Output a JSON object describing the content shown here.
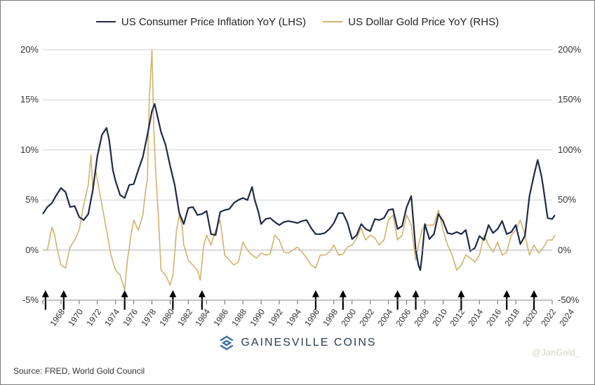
{
  "legend": {
    "series1": {
      "label": "US Consumer Price Inflation YoY (LHS)",
      "color": "#1e2a47"
    },
    "series2": {
      "label": "US Dollar Gold Price YoY (RHS)",
      "color": "#d2b26b"
    }
  },
  "chart": {
    "type": "line",
    "background_color": "#ffffff",
    "border_color": "#7a7a7a",
    "grid_color": "#cfcfcf",
    "axis_text_color": "#333333",
    "tick_font_size": 12,
    "label_font_size": 13,
    "line_width_cpi": 2.2,
    "line_width_gold": 1.6,
    "x": {
      "min": 1968,
      "max": 2024,
      "ticks": [
        1968,
        1970,
        1972,
        1974,
        1976,
        1978,
        1980,
        1982,
        1984,
        1986,
        1988,
        1990,
        1992,
        1994,
        1996,
        1998,
        2000,
        2002,
        2004,
        2006,
        2008,
        2010,
        2012,
        2014,
        2016,
        2018,
        2020,
        2022,
        2024
      ]
    },
    "y_left": {
      "min": -5,
      "max": 20,
      "ticks": [
        -5,
        0,
        5,
        10,
        15,
        20
      ],
      "suffix": "%"
    },
    "y_right": {
      "min": -50,
      "max": 200,
      "ticks": [
        -50,
        0,
        50,
        100,
        150,
        200
      ],
      "suffix": "%"
    },
    "cpi": [
      [
        1968,
        3.6
      ],
      [
        1968.5,
        4.3
      ],
      [
        1969,
        4.7
      ],
      [
        1969.5,
        5.5
      ],
      [
        1970,
        6.2
      ],
      [
        1970.5,
        5.8
      ],
      [
        1971,
        4.3
      ],
      [
        1971.5,
        4.4
      ],
      [
        1972,
        3.3
      ],
      [
        1972.5,
        3.0
      ],
      [
        1973,
        3.6
      ],
      [
        1973.5,
        6.0
      ],
      [
        1974,
        9.4
      ],
      [
        1974.5,
        11.5
      ],
      [
        1975,
        12.2
      ],
      [
        1975.3,
        11.0
      ],
      [
        1975.7,
        8.0
      ],
      [
        1976,
        6.9
      ],
      [
        1976.5,
        5.5
      ],
      [
        1977,
        5.2
      ],
      [
        1977.5,
        6.5
      ],
      [
        1978,
        6.6
      ],
      [
        1978.5,
        8.0
      ],
      [
        1979,
        9.3
      ],
      [
        1979.5,
        11.5
      ],
      [
        1980,
        13.9
      ],
      [
        1980.3,
        14.6
      ],
      [
        1980.7,
        13.0
      ],
      [
        1981,
        11.8
      ],
      [
        1981.5,
        10.5
      ],
      [
        1982,
        8.4
      ],
      [
        1982.5,
        6.5
      ],
      [
        1983,
        3.7
      ],
      [
        1983.5,
        2.6
      ],
      [
        1984,
        4.2
      ],
      [
        1984.5,
        4.3
      ],
      [
        1985,
        3.5
      ],
      [
        1985.5,
        3.6
      ],
      [
        1986,
        3.9
      ],
      [
        1986.5,
        1.6
      ],
      [
        1987,
        1.5
      ],
      [
        1987.5,
        3.8
      ],
      [
        1988,
        4.0
      ],
      [
        1988.5,
        4.1
      ],
      [
        1989,
        4.7
      ],
      [
        1989.5,
        5.0
      ],
      [
        1990,
        5.2
      ],
      [
        1990.5,
        5.0
      ],
      [
        1991,
        6.3
      ],
      [
        1991.3,
        5.0
      ],
      [
        1991.7,
        3.8
      ],
      [
        1992,
        2.6
      ],
      [
        1992.5,
        3.1
      ],
      [
        1993,
        3.2
      ],
      [
        1993.5,
        2.8
      ],
      [
        1994,
        2.5
      ],
      [
        1994.5,
        2.8
      ],
      [
        1995,
        2.9
      ],
      [
        1995.5,
        2.8
      ],
      [
        1996,
        2.7
      ],
      [
        1996.5,
        2.9
      ],
      [
        1997,
        3.0
      ],
      [
        1997.5,
        2.2
      ],
      [
        1998,
        1.6
      ],
      [
        1998.5,
        1.6
      ],
      [
        1999,
        1.7
      ],
      [
        1999.5,
        2.1
      ],
      [
        2000,
        2.7
      ],
      [
        2000.5,
        3.7
      ],
      [
        2001,
        3.7
      ],
      [
        2001.5,
        2.7
      ],
      [
        2002,
        1.1
      ],
      [
        2002.5,
        1.5
      ],
      [
        2003,
        2.6
      ],
      [
        2003.5,
        2.1
      ],
      [
        2004,
        1.9
      ],
      [
        2004.5,
        3.1
      ],
      [
        2005,
        3.0
      ],
      [
        2005.5,
        3.2
      ],
      [
        2006,
        4.0
      ],
      [
        2006.5,
        4.1
      ],
      [
        2007,
        2.1
      ],
      [
        2007.5,
        2.4
      ],
      [
        2008,
        4.3
      ],
      [
        2008.5,
        5.4
      ],
      [
        2009,
        0.0
      ],
      [
        2009.3,
        -1.5
      ],
      [
        2009.5,
        -2.0
      ],
      [
        2009.7,
        -0.5
      ],
      [
        2010,
        2.6
      ],
      [
        2010.5,
        1.1
      ],
      [
        2011,
        1.6
      ],
      [
        2011.5,
        3.6
      ],
      [
        2012,
        2.9
      ],
      [
        2012.5,
        1.7
      ],
      [
        2013,
        1.6
      ],
      [
        2013.5,
        1.8
      ],
      [
        2014,
        1.6
      ],
      [
        2014.5,
        2.0
      ],
      [
        2015,
        -0.1
      ],
      [
        2015.5,
        0.2
      ],
      [
        2016,
        1.4
      ],
      [
        2016.5,
        1.0
      ],
      [
        2017,
        2.5
      ],
      [
        2017.5,
        1.7
      ],
      [
        2018,
        2.1
      ],
      [
        2018.5,
        2.9
      ],
      [
        2019,
        1.6
      ],
      [
        2019.5,
        1.8
      ],
      [
        2020,
        2.5
      ],
      [
        2020.5,
        0.6
      ],
      [
        2021,
        1.4
      ],
      [
        2021.5,
        5.4
      ],
      [
        2022,
        7.5
      ],
      [
        2022.4,
        9.0
      ],
      [
        2022.8,
        7.5
      ],
      [
        2023,
        6.4
      ],
      [
        2023.5,
        3.2
      ],
      [
        2024,
        3.1
      ],
      [
        2024.3,
        3.5
      ]
    ],
    "gold": [
      [
        1968,
        0
      ],
      [
        1968.5,
        0
      ],
      [
        1969,
        23
      ],
      [
        1969.3,
        15
      ],
      [
        1969.5,
        5
      ],
      [
        1970,
        -15
      ],
      [
        1970.5,
        -18
      ],
      [
        1971,
        3
      ],
      [
        1971.5,
        10
      ],
      [
        1972,
        20
      ],
      [
        1972.5,
        45
      ],
      [
        1973,
        65
      ],
      [
        1973.3,
        95
      ],
      [
        1973.5,
        60
      ],
      [
        1973.8,
        80
      ],
      [
        1974,
        70
      ],
      [
        1974.5,
        45
      ],
      [
        1975,
        20
      ],
      [
        1975.5,
        -5
      ],
      [
        1976,
        -20
      ],
      [
        1976.5,
        -25
      ],
      [
        1977,
        -40
      ],
      [
        1977.3,
        -10
      ],
      [
        1977.7,
        15
      ],
      [
        1978,
        30
      ],
      [
        1978.5,
        20
      ],
      [
        1979,
        35
      ],
      [
        1979.3,
        60
      ],
      [
        1979.5,
        70
      ],
      [
        1979.7,
        150
      ],
      [
        1980,
        200
      ],
      [
        1980.2,
        120
      ],
      [
        1980.4,
        80
      ],
      [
        1980.7,
        35
      ],
      [
        1981,
        -20
      ],
      [
        1981.5,
        -25
      ],
      [
        1982,
        -35
      ],
      [
        1982.3,
        -25
      ],
      [
        1982.7,
        20
      ],
      [
        1983,
        35
      ],
      [
        1983.3,
        25
      ],
      [
        1983.5,
        5
      ],
      [
        1984,
        -10
      ],
      [
        1984.5,
        -15
      ],
      [
        1985,
        -20
      ],
      [
        1985.3,
        -30
      ],
      [
        1985.7,
        5
      ],
      [
        1986,
        15
      ],
      [
        1986.5,
        5
      ],
      [
        1987,
        20
      ],
      [
        1987.5,
        30
      ],
      [
        1988,
        -5
      ],
      [
        1988.5,
        -10
      ],
      [
        1989,
        -15
      ],
      [
        1989.5,
        -12
      ],
      [
        1990,
        8
      ],
      [
        1990.5,
        0
      ],
      [
        1991,
        -5
      ],
      [
        1991.5,
        -8
      ],
      [
        1992,
        -3
      ],
      [
        1992.5,
        -5
      ],
      [
        1993,
        -4
      ],
      [
        1993.5,
        15
      ],
      [
        1994,
        10
      ],
      [
        1994.5,
        -2
      ],
      [
        1995,
        -3
      ],
      [
        1995.5,
        0
      ],
      [
        1996,
        3
      ],
      [
        1996.5,
        -2
      ],
      [
        1997,
        -8
      ],
      [
        1997.5,
        -15
      ],
      [
        1998,
        -18
      ],
      [
        1998.5,
        -5
      ],
      [
        1999,
        -5
      ],
      [
        1999.5,
        -2
      ],
      [
        2000,
        5
      ],
      [
        2000.5,
        -5
      ],
      [
        2001,
        -4
      ],
      [
        2001.5,
        3
      ],
      [
        2002,
        5
      ],
      [
        2002.5,
        12
      ],
      [
        2003,
        22
      ],
      [
        2003.5,
        10
      ],
      [
        2004,
        15
      ],
      [
        2004.5,
        12
      ],
      [
        2005,
        5
      ],
      [
        2005.5,
        10
      ],
      [
        2006,
        30
      ],
      [
        2006.5,
        35
      ],
      [
        2007,
        10
      ],
      [
        2007.5,
        15
      ],
      [
        2008,
        35
      ],
      [
        2008.5,
        25
      ],
      [
        2009,
        -10
      ],
      [
        2009.3,
        5
      ],
      [
        2009.7,
        20
      ],
      [
        2010,
        25
      ],
      [
        2010.5,
        25
      ],
      [
        2011,
        25
      ],
      [
        2011.5,
        40
      ],
      [
        2012,
        20
      ],
      [
        2012.5,
        5
      ],
      [
        2013,
        -5
      ],
      [
        2013.5,
        -20
      ],
      [
        2014,
        -15
      ],
      [
        2014.5,
        -5
      ],
      [
        2015,
        -8
      ],
      [
        2015.5,
        -12
      ],
      [
        2016,
        -5
      ],
      [
        2016.5,
        15
      ],
      [
        2017,
        5
      ],
      [
        2017.5,
        -2
      ],
      [
        2018,
        8
      ],
      [
        2018.5,
        -5
      ],
      [
        2019,
        -2
      ],
      [
        2019.5,
        15
      ],
      [
        2020,
        20
      ],
      [
        2020.5,
        30
      ],
      [
        2021,
        15
      ],
      [
        2021.5,
        -5
      ],
      [
        2022,
        5
      ],
      [
        2022.5,
        -3
      ],
      [
        2023,
        2
      ],
      [
        2023.5,
        10
      ],
      [
        2024,
        10
      ],
      [
        2024.3,
        15
      ]
    ],
    "arrows": [
      1968.3,
      1970.3,
      1977,
      1982.3,
      1985.5,
      1998,
      2001,
      2007,
      2009,
      2014,
      2019,
      2022
    ],
    "arrow_color": "#000000",
    "arrow_at_y_left": -4.0
  },
  "footer": {
    "brand": "GAINESVILLE COINS",
    "brand_color": "#2c3e50",
    "logo_accent": "#3b6ea5",
    "source": "Source: FRED, World Gold Council",
    "watermark": "@JanGold_"
  }
}
